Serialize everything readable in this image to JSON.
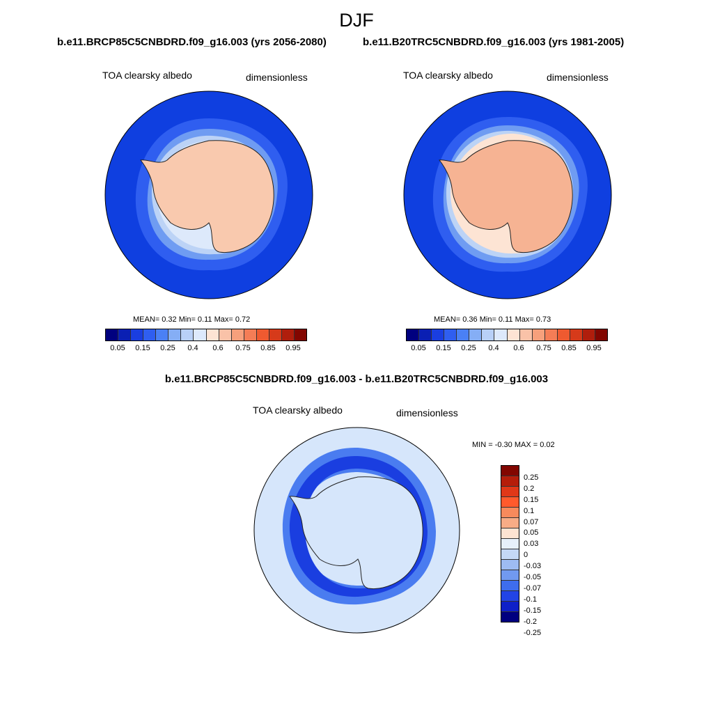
{
  "season": "DJF",
  "panels": [
    {
      "case": "b.e11.BRCP85C5CNBDRD.f09_g16.003 (yrs 2056-2080)",
      "variable": "TOA clearsky albedo",
      "units": "dimensionless",
      "stats": "MEAN=   0.32  Min=   0.11  Max=   0.72"
    },
    {
      "case": "b.e11.B20TRC5CNBDRD.f09_g16.003 (yrs 1981-2005)",
      "variable": "TOA clearsky albedo",
      "units": "dimensionless",
      "stats": "MEAN=   0.36  Min=   0.11  Max=   0.73"
    }
  ],
  "difference": {
    "title": "b.e11.BRCP85C5CNBDRD.f09_g16.003 - b.e11.B20TRC5CNBDRD.f09_g16.003",
    "variable": "TOA clearsky albedo",
    "units": "dimensionless",
    "stats": "MIN =  -0.30 MAX =   0.02"
  },
  "colorbar_main": {
    "colors": [
      "#00007f",
      "#0a1fb3",
      "#1a3ee0",
      "#2f5ef0",
      "#4a80f5",
      "#85aef5",
      "#b8d0f7",
      "#dde9fb",
      "#fde4d4",
      "#f9c2a8",
      "#f6a07c",
      "#f47d56",
      "#ef5a30",
      "#d63a1a",
      "#b01e0c",
      "#820600"
    ],
    "ticks": [
      "0.05",
      "0.15",
      "0.25",
      "0.4",
      "0.6",
      "0.75",
      "0.85",
      "0.95"
    ]
  },
  "colorbar_diff": {
    "colors": [
      "#820600",
      "#b51d0a",
      "#e03818",
      "#ff5a2c",
      "#f88a5c",
      "#f8ac86",
      "#fde3d2",
      "#e7f0fb",
      "#c4d8f6",
      "#9ebbf2",
      "#7199f0",
      "#3e6ded",
      "#2244e6",
      "#0f20c8",
      "#00007f"
    ],
    "ticks": [
      "0.25",
      "0.2",
      "0.15",
      "0.1",
      "0.07",
      "0.05",
      "0.03",
      "0",
      "-0.03",
      "-0.05",
      "-0.07",
      "-0.1",
      "-0.15",
      "-0.2",
      "-0.25"
    ]
  },
  "map_colors": {
    "ocean_deep": "#0f3fe0",
    "ocean_mid": "#2f5ef0",
    "ocean_light": "#6f9cf2",
    "sea_ice_pale": "#bcd3f6",
    "ice_edge": "#dde9fb",
    "land_future": "#f9c9ae",
    "land_hist": "#f6b393",
    "diff_background": "#d6e6fb",
    "diff_ring_mid": "#4a7cf0",
    "diff_ring_dark": "#1a3ee0"
  }
}
